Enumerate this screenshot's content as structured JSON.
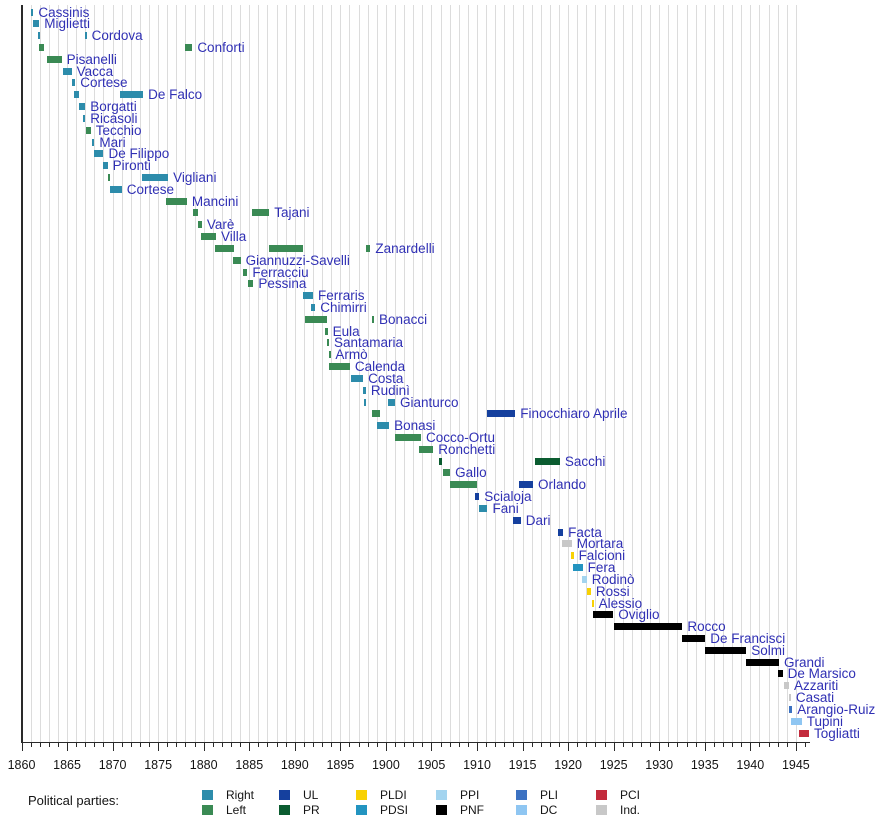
{
  "chart_data": {
    "type": "bar",
    "subtype": "gantt-timeline",
    "title": "",
    "xlabel": "",
    "ylabel": "",
    "x_axis": {
      "start_year": 1860,
      "end_year": 1946.5,
      "major_tick_interval": 5,
      "minor_tick_interval": 1,
      "tick_labels": [
        "1860",
        "1865",
        "1870",
        "1875",
        "1880",
        "1885",
        "1890",
        "1895",
        "1900",
        "1905",
        "1910",
        "1915",
        "1920",
        "1925",
        "1930",
        "1935",
        "1940",
        "1945"
      ],
      "grid": "on"
    },
    "party_colors": {
      "Right": "#2d8cab",
      "Left": "#3a8a54",
      "UL": "#15409e",
      "PR": "#0b5c30",
      "PLDI": "#f8d103",
      "PDSI": "#2394c0",
      "PPI": "#a3d4ef",
      "PNF": "#000000",
      "PLI": "#3c72c2",
      "DC": "#8fc6f2",
      "PCI": "#c32b3c",
      "Ind.": "#c8c8c8"
    },
    "legend": {
      "heading": "Political parties:",
      "columns": [
        [
          "Right",
          "Left"
        ],
        [
          "UL",
          "PR"
        ],
        [
          "PLDI",
          "PDSI"
        ],
        [
          "PPI",
          "PNF"
        ],
        [
          "PLI",
          "DC"
        ],
        [
          "PCI",
          "Ind."
        ]
      ]
    },
    "rows": [
      {
        "name": "Cassinis",
        "terms": [
          {
            "start": 1861.0,
            "end": 1861.3,
            "party": "Right"
          }
        ]
      },
      {
        "name": "Miglietti",
        "terms": [
          {
            "start": 1861.3,
            "end": 1861.95,
            "party": "Right"
          }
        ]
      },
      {
        "name": "Cordova",
        "terms": [
          {
            "start": 1861.8,
            "end": 1861.95,
            "party": "Right"
          },
          {
            "start": 1866.95,
            "end": 1867.15,
            "party": "Right"
          }
        ]
      },
      {
        "name": "Conforti",
        "terms": [
          {
            "start": 1861.95,
            "end": 1862.5,
            "party": "Left"
          },
          {
            "start": 1877.95,
            "end": 1878.75,
            "party": "Left"
          }
        ]
      },
      {
        "name": "Pisanelli",
        "terms": [
          {
            "start": 1862.75,
            "end": 1864.4,
            "party": "Left"
          }
        ]
      },
      {
        "name": "Vacca",
        "terms": [
          {
            "start": 1864.6,
            "end": 1865.5,
            "party": "Right"
          }
        ]
      },
      {
        "name": "Cortese",
        "terms": [
          {
            "start": 1865.5,
            "end": 1865.9,
            "party": "Right"
          }
        ]
      },
      {
        "name": "De Falco",
        "terms": [
          {
            "start": 1865.8,
            "end": 1866.35,
            "party": "Right"
          },
          {
            "start": 1870.8,
            "end": 1873.35,
            "party": "Right"
          }
        ]
      },
      {
        "name": "Borgatti",
        "terms": [
          {
            "start": 1866.35,
            "end": 1867.0,
            "party": "Right"
          }
        ]
      },
      {
        "name": "Ricasoli",
        "terms": [
          {
            "start": 1866.8,
            "end": 1867.0,
            "party": "Right"
          }
        ]
      },
      {
        "name": "Tecchio",
        "terms": [
          {
            "start": 1867.1,
            "end": 1867.6,
            "party": "Left"
          }
        ]
      },
      {
        "name": "Mari",
        "terms": [
          {
            "start": 1867.75,
            "end": 1868.0,
            "party": "Right"
          }
        ]
      },
      {
        "name": "De Filippo",
        "terms": [
          {
            "start": 1867.95,
            "end": 1869.0,
            "party": "Right"
          }
        ]
      },
      {
        "name": "Pironti",
        "terms": [
          {
            "start": 1869.0,
            "end": 1869.45,
            "party": "Right"
          }
        ]
      },
      {
        "name": "Vigliani",
        "terms": [
          {
            "start": 1869.45,
            "end": 1869.7,
            "party": "Left"
          },
          {
            "start": 1873.2,
            "end": 1876.1,
            "party": "Right"
          }
        ]
      },
      {
        "name": "Cortese",
        "terms": [
          {
            "start": 1869.7,
            "end": 1871.0,
            "party": "Right"
          }
        ]
      },
      {
        "name": "Mancini",
        "terms": [
          {
            "start": 1875.9,
            "end": 1878.15,
            "party": "Left"
          }
        ]
      },
      {
        "name": "Tajani",
        "terms": [
          {
            "start": 1878.8,
            "end": 1879.35,
            "party": "Left"
          },
          {
            "start": 1885.25,
            "end": 1887.2,
            "party": "Left"
          }
        ]
      },
      {
        "name": "Varè",
        "terms": [
          {
            "start": 1879.4,
            "end": 1879.8,
            "party": "Left"
          }
        ]
      },
      {
        "name": "Villa",
        "terms": [
          {
            "start": 1879.7,
            "end": 1881.35,
            "party": "Left"
          }
        ]
      },
      {
        "name": "Zanardelli",
        "terms": [
          {
            "start": 1881.25,
            "end": 1883.3,
            "party": "Left"
          },
          {
            "start": 1887.15,
            "end": 1890.95,
            "party": "Left"
          },
          {
            "start": 1897.8,
            "end": 1898.3,
            "party": "Left"
          }
        ]
      },
      {
        "name": "Giannuzzi-Savelli",
        "terms": [
          {
            "start": 1883.25,
            "end": 1884.05,
            "party": "Left"
          }
        ]
      },
      {
        "name": "Ferracciu",
        "terms": [
          {
            "start": 1884.3,
            "end": 1884.8,
            "party": "Left"
          }
        ]
      },
      {
        "name": "Pessina",
        "terms": [
          {
            "start": 1884.9,
            "end": 1885.45,
            "party": "Left"
          }
        ]
      },
      {
        "name": "Ferraris",
        "terms": [
          {
            "start": 1890.85,
            "end": 1892.0,
            "party": "Right"
          }
        ]
      },
      {
        "name": "Chimirri",
        "terms": [
          {
            "start": 1891.75,
            "end": 1892.25,
            "party": "Right"
          }
        ]
      },
      {
        "name": "Bonacci",
        "terms": [
          {
            "start": 1891.1,
            "end": 1893.5,
            "party": "Left"
          },
          {
            "start": 1898.45,
            "end": 1898.7,
            "party": "Left"
          }
        ]
      },
      {
        "name": "Eula",
        "terms": [
          {
            "start": 1893.35,
            "end": 1893.6,
            "party": "Left"
          }
        ]
      },
      {
        "name": "Santamaria",
        "terms": [
          {
            "start": 1893.5,
            "end": 1893.75,
            "party": "Left"
          }
        ]
      },
      {
        "name": "Armò",
        "terms": [
          {
            "start": 1893.7,
            "end": 1893.9,
            "party": "Left"
          }
        ]
      },
      {
        "name": "Calenda",
        "terms": [
          {
            "start": 1893.8,
            "end": 1896.05,
            "party": "Left"
          }
        ]
      },
      {
        "name": "Costa",
        "terms": [
          {
            "start": 1896.15,
            "end": 1897.5,
            "party": "Right"
          }
        ]
      },
      {
        "name": "Rudinì",
        "terms": [
          {
            "start": 1897.5,
            "end": 1897.8,
            "party": "Right"
          }
        ]
      },
      {
        "name": "Gianturco",
        "terms": [
          {
            "start": 1897.6,
            "end": 1897.85,
            "party": "Right"
          },
          {
            "start": 1900.25,
            "end": 1901.0,
            "party": "Right"
          }
        ]
      },
      {
        "name": "Finocchiaro Aprile",
        "terms": [
          {
            "start": 1898.45,
            "end": 1899.35,
            "party": "Left"
          },
          {
            "start": 1911.1,
            "end": 1914.2,
            "party": "UL"
          }
        ]
      },
      {
        "name": "Bonasi",
        "terms": [
          {
            "start": 1899.05,
            "end": 1900.35,
            "party": "Right"
          }
        ]
      },
      {
        "name": "Cocco-Ortu",
        "terms": [
          {
            "start": 1901.0,
            "end": 1903.85,
            "party": "Left"
          }
        ]
      },
      {
        "name": "Ronchetti",
        "terms": [
          {
            "start": 1903.65,
            "end": 1905.2,
            "party": "Left"
          }
        ]
      },
      {
        "name": "Sacchi",
        "terms": [
          {
            "start": 1905.85,
            "end": 1906.15,
            "party": "PR"
          },
          {
            "start": 1916.35,
            "end": 1919.1,
            "party": "PR"
          }
        ]
      },
      {
        "name": "Gallo",
        "terms": [
          {
            "start": 1906.25,
            "end": 1907.05,
            "party": "Left"
          }
        ]
      },
      {
        "name": "Orlando",
        "terms": [
          {
            "start": 1907.05,
            "end": 1910.05,
            "party": "Left"
          },
          {
            "start": 1914.65,
            "end": 1916.15,
            "party": "UL"
          }
        ]
      },
      {
        "name": "Scialoja",
        "terms": [
          {
            "start": 1909.8,
            "end": 1910.25,
            "party": "UL"
          }
        ]
      },
      {
        "name": "Fani",
        "terms": [
          {
            "start": 1910.25,
            "end": 1911.15,
            "party": "Right"
          }
        ]
      },
      {
        "name": "Dari",
        "terms": [
          {
            "start": 1913.95,
            "end": 1914.8,
            "party": "UL"
          }
        ]
      },
      {
        "name": "Facta",
        "terms": [
          {
            "start": 1918.9,
            "end": 1919.45,
            "party": "UL"
          }
        ]
      },
      {
        "name": "Mortara",
        "terms": [
          {
            "start": 1919.35,
            "end": 1920.4,
            "party": "Ind."
          }
        ]
      },
      {
        "name": "Falcioni",
        "terms": [
          {
            "start": 1920.35,
            "end": 1920.6,
            "party": "PLDI"
          }
        ]
      },
      {
        "name": "Fera",
        "terms": [
          {
            "start": 1920.5,
            "end": 1921.6,
            "party": "PDSI"
          }
        ]
      },
      {
        "name": "Rodinò",
        "terms": [
          {
            "start": 1921.5,
            "end": 1922.05,
            "party": "PPI"
          }
        ]
      },
      {
        "name": "Rossi",
        "terms": [
          {
            "start": 1922.05,
            "end": 1922.5,
            "party": "PLDI"
          }
        ]
      },
      {
        "name": "Alessio",
        "terms": [
          {
            "start": 1922.6,
            "end": 1922.8,
            "party": "PLDI"
          }
        ]
      },
      {
        "name": "Oviglio",
        "terms": [
          {
            "start": 1922.7,
            "end": 1924.95,
            "party": "PNF"
          }
        ]
      },
      {
        "name": "Rocco",
        "terms": [
          {
            "start": 1925.05,
            "end": 1932.55,
            "party": "PNF"
          }
        ]
      },
      {
        "name": "De Francisci",
        "terms": [
          {
            "start": 1932.45,
            "end": 1935.05,
            "party": "PNF"
          }
        ]
      },
      {
        "name": "Solmi",
        "terms": [
          {
            "start": 1935.05,
            "end": 1939.55,
            "party": "PNF"
          }
        ]
      },
      {
        "name": "Grandi",
        "terms": [
          {
            "start": 1939.55,
            "end": 1943.15,
            "party": "PNF"
          }
        ]
      },
      {
        "name": "De Marsico",
        "terms": [
          {
            "start": 1943.0,
            "end": 1943.55,
            "party": "PNF"
          }
        ]
      },
      {
        "name": "Azzariti",
        "terms": [
          {
            "start": 1943.65,
            "end": 1944.25,
            "party": "Ind."
          }
        ]
      },
      {
        "name": "Casati",
        "terms": [
          {
            "start": 1944.25,
            "end": 1944.45,
            "party": "Ind."
          }
        ]
      },
      {
        "name": "Arangio-Ruiz",
        "terms": [
          {
            "start": 1944.25,
            "end": 1944.6,
            "party": "PLI"
          }
        ]
      },
      {
        "name": "Tupini",
        "terms": [
          {
            "start": 1944.45,
            "end": 1945.65,
            "party": "DC"
          }
        ]
      },
      {
        "name": "Togliatti",
        "terms": [
          {
            "start": 1945.4,
            "end": 1946.45,
            "party": "PCI"
          }
        ]
      }
    ]
  }
}
